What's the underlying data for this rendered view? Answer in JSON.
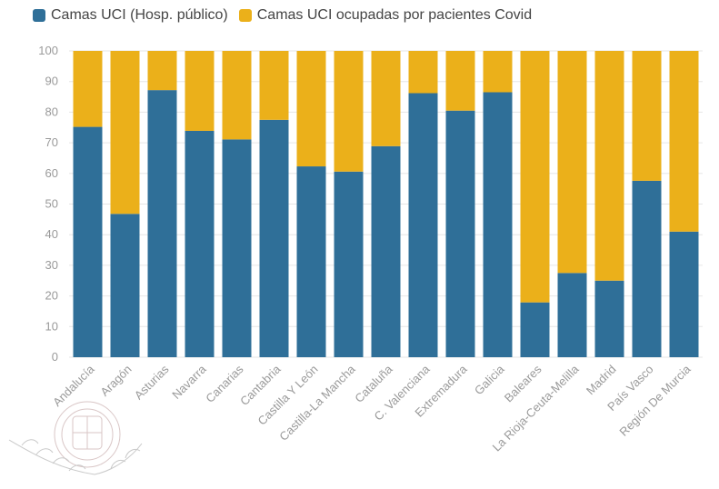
{
  "legend": {
    "items": [
      {
        "label": "Camas UCI (Hosp. público)",
        "color": "#2f6f98"
      },
      {
        "label": "Camas UCI ocupadas por pacientes Covid",
        "color": "#ebb01a"
      }
    ]
  },
  "watermark": {
    "icon": "coat-of-arms-watermark-icon"
  },
  "chart_data": {
    "type": "bar",
    "stacked": true,
    "categories": [
      "Andalucía",
      "Aragón",
      "Asturias",
      "Navarra",
      "Canarias",
      "Cantabria",
      "Castilla Y León",
      "Castilla-La Mancha",
      "Cataluña",
      "C. Valenciana",
      "Extremadura",
      "Galicia",
      "Baleares",
      "La Rioja-Ceuta-Melilla",
      "Madrid",
      "País Vasco",
      "Región De Murcia"
    ],
    "series": [
      {
        "name": "Camas UCI (Hosp. público)",
        "color": "#2f6f98",
        "values": [
          75.2,
          46.8,
          87.2,
          73.9,
          71.1,
          77.5,
          62.3,
          60.6,
          68.9,
          86.2,
          80.5,
          86.5,
          17.9,
          27.5,
          25.0,
          57.6,
          41.0
        ]
      },
      {
        "name": "Camas UCI ocupadas por pacientes Covid",
        "color": "#ebb01a",
        "values": [
          24.8,
          53.2,
          12.8,
          26.1,
          28.9,
          22.5,
          37.7,
          39.4,
          31.1,
          13.8,
          19.5,
          13.5,
          82.1,
          72.5,
          75.0,
          42.4,
          59.0
        ]
      }
    ],
    "yticks": [
      "0",
      "10",
      "20",
      "30",
      "40",
      "50",
      "60",
      "70",
      "80",
      "90",
      "100"
    ],
    "ylim": [
      0,
      100
    ],
    "grid": true,
    "legend_position": "top-left"
  }
}
